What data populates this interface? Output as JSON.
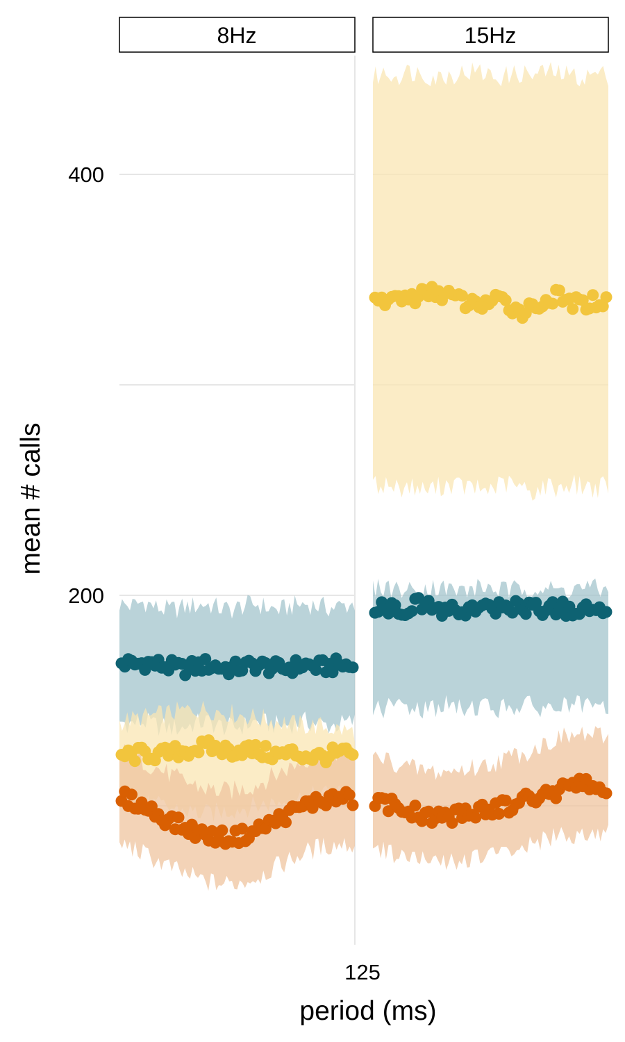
{
  "chart_data": {
    "type": "scatter",
    "facets": [
      "8Hz",
      "15Hz"
    ],
    "xlabel": "period (ms)",
    "ylabel": "mean # calls",
    "x_ticks": [
      "125"
    ],
    "y_ticks": [
      200,
      400
    ],
    "ylim": [
      42,
      470
    ],
    "grid": true,
    "series_colors": {
      "yellow": "#f2c53d",
      "teal": "#0e6272",
      "orange": "#d95f02"
    },
    "ribbon_colors": {
      "yellow": "#f9e6b3",
      "teal": "#a3c4cc",
      "orange": "#efc49f"
    },
    "panels": [
      {
        "facet": "8Hz",
        "series": [
          {
            "color_key": "teal",
            "mean": [
              168,
              167,
              168,
              167,
              166,
              165,
              166,
              167,
              166,
              165,
              166,
              167,
              166,
              165,
              166,
              167,
              166,
              166,
              167,
              166
            ],
            "lower": [
              140,
              139,
              140,
              138,
              137,
              137,
              139,
              140,
              138,
              137,
              138,
              140,
              139,
              138,
              139,
              140,
              139,
              138,
              139,
              140
            ],
            "upper": [
              196,
              195,
              197,
              194,
              193,
              194,
              195,
              196,
              194,
              193,
              195,
              196,
              194,
              193,
              195,
              196,
              195,
              194,
              195,
              196
            ]
          },
          {
            "color_key": "yellow",
            "mean": [
              124,
              124,
              125,
              124,
              125,
              126,
              127,
              128,
              127,
              126,
              127,
              126,
              125,
              124,
              125,
              124,
              123,
              124,
              125,
              124
            ],
            "lower": [
              103,
              102,
              101,
              100,
              99,
              98,
              97,
              96,
              97,
              98,
              99,
              100,
              101,
              102,
              103,
              104,
              105,
              106,
              106,
              107
            ],
            "upper": [
              140,
              141,
              142,
              143,
              144,
              145,
              146,
              146,
              145,
              144,
              143,
              142,
              141,
              140,
              139,
              138,
              138,
              137,
              136,
              135
            ]
          },
          {
            "color_key": "orange",
            "mean": [
              104,
              102,
              99,
              96,
              93,
              90,
              88,
              86,
              85,
              85,
              86,
              88,
              91,
              94,
              97,
              100,
              102,
              103,
              104,
              103
            ],
            "lower": [
              82,
              80,
              77,
              74,
              71,
              68,
              66,
              64,
              63,
              63,
              64,
              66,
              69,
              72,
              75,
              78,
              80,
              81,
              82,
              81
            ],
            "upper": [
              126,
              124,
              121,
              118,
              115,
              112,
              110,
              108,
              107,
              107,
              108,
              110,
              113,
              116,
              119,
              122,
              124,
              125,
              126,
              125
            ]
          }
        ]
      },
      {
        "facet": "15Hz",
        "series": [
          {
            "color_key": "yellow",
            "mean": [
              338,
              340,
              342,
              341,
              343,
              344,
              343,
              340,
              338,
              339,
              340,
              338,
              335,
              337,
              340,
              342,
              339,
              338,
              340,
              339
            ],
            "lower": [
              252,
              253,
              251,
              252,
              250,
              251,
              253,
              252,
              251,
              250,
              252,
              253,
              251,
              249,
              252,
              251,
              253,
              252,
              251,
              252
            ],
            "upper": [
              446,
              448,
              447,
              449,
              448,
              446,
              447,
              448,
              449,
              448,
              446,
              447,
              448,
              447,
              449,
              448,
              447,
              446,
              448,
              447
            ]
          },
          {
            "color_key": "teal",
            "mean": [
              195,
              194,
              193,
              195,
              196,
              194,
              192,
              193,
              194,
              193,
              194,
              195,
              194,
              195,
              193,
              194,
              193,
              192,
              193,
              194
            ],
            "lower": [
              147,
              146,
              148,
              147,
              146,
              147,
              148,
              146,
              147,
              148,
              146,
              147,
              148,
              147,
              146,
              147,
              148,
              147,
              146,
              147
            ],
            "upper": [
              203,
              204,
              203,
              202,
              203,
              204,
              203,
              202,
              203,
              204,
              203,
              202,
              203,
              204,
              203,
              202,
              203,
              204,
              203,
              202
            ]
          },
          {
            "color_key": "orange",
            "mean": [
              102,
              101,
              99,
              97,
              96,
              95,
              95,
              96,
              97,
              98,
              99,
              100,
              102,
              104,
              106,
              107,
              108,
              110,
              109,
              107
            ],
            "lower": [
              80,
              79,
              77,
              75,
              74,
              73,
              73,
              74,
              75,
              76,
              77,
              78,
              80,
              82,
              84,
              85,
              86,
              88,
              87,
              86
            ],
            "upper": [
              123,
              122,
              120,
              118,
              117,
              116,
              116,
              117,
              118,
              119,
              121,
              123,
              125,
              127,
              130,
              132,
              133,
              134,
              133,
              132
            ]
          }
        ]
      }
    ]
  }
}
